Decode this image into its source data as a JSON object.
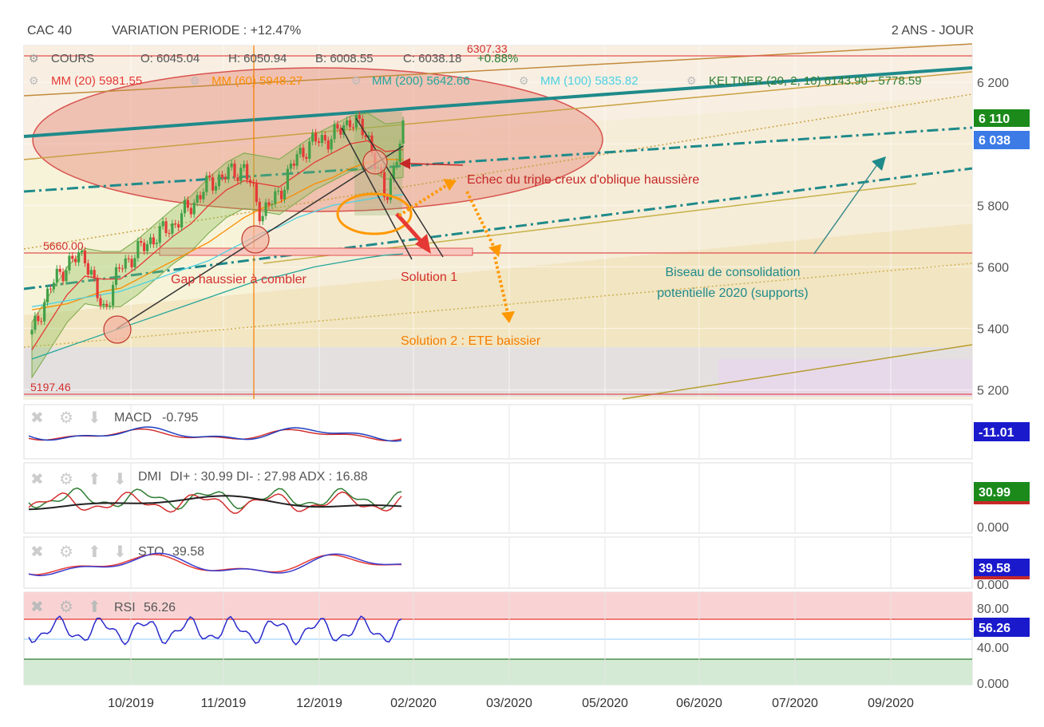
{
  "header": {
    "symbol": "CAC 40",
    "variation": "VARIATION PERIODE : +12.47%",
    "period": "2 ANS - JOUR"
  },
  "legend": {
    "cours_label": "COURS",
    "open": "O: 6045.04",
    "high": "H: 6050.94",
    "low": "B: 6008.55",
    "close": "C: 6038.18",
    "change": "+0.88%",
    "hidden_top_value": "6307.33",
    "mm20": "MM (20)  5981.55",
    "mm60": "MM (60)  5948.27",
    "mm200": "MM (200)  5642.66",
    "mm100": "MM (100)  5835.82",
    "keltner": "KELTNER (20, 2, 10)  6143.90 - 5778.59"
  },
  "colors": {
    "mm20": "#e53935",
    "mm60": "#fb8c00",
    "mm200": "#26a69a",
    "mm100": "#4dd0e1",
    "keltner": "#2e7d32",
    "candle_up": "#43a047",
    "candle_down": "#e53935",
    "trend_teal": "#1f8a8a",
    "annotation_red": "#d32f2f",
    "annotation_orange": "#ff9800",
    "tag_green": "#1b8a1b",
    "tag_blue": "#3c7be6",
    "tag_navy": "#1a1acc"
  },
  "annotations": {
    "echec": "Echec du triple creux d'oblique haussière",
    "gap": "Gap haussier à combler",
    "solution1": "Solution 1",
    "solution2": "Solution 2 : ETE baissier",
    "biseau_line1": "Biseau de consolidation",
    "biseau_line2": "potentielle 2020 (supports)",
    "level_5660": "5660.00",
    "level_5197": "5197.46"
  },
  "price_tags": {
    "upper": "6 110",
    "close": "6 038"
  },
  "indicators": {
    "macd": {
      "label": "MACD",
      "value": "-0.795",
      "tag": "-11.01"
    },
    "dmi": {
      "label": "DMI",
      "value": "DI+ : 30.99 DI- : 27.98 ADX : 16.88",
      "tag": "30.99",
      "axis": "0.000"
    },
    "sto": {
      "label": "STO",
      "value": "39.58",
      "tag": "39.58",
      "axis": "0.000"
    },
    "rsi": {
      "label": "RSI",
      "value": "56.26",
      "tag": "56.26",
      "axis": [
        "80.00",
        "40.00",
        "0.000"
      ]
    }
  },
  "chart_data": {
    "type": "line",
    "title": "CAC 40",
    "subtitle": "VARIATION PERIODE : +12.47%",
    "xlabel": "",
    "ylabel": "",
    "x_tick_labels": [
      "10/2019",
      "11/2019",
      "12/2019",
      "02/2020",
      "03/2020",
      "05/2020",
      "06/2020",
      "07/2020",
      "09/2020"
    ],
    "y_tick_labels": [
      "6 200",
      "6 000",
      "5 800",
      "5 600",
      "5 400",
      "5 200"
    ],
    "y_ticks": [
      6200,
      6000,
      5800,
      5600,
      5400,
      5200
    ],
    "ylim": [
      5170,
      6320
    ],
    "grid": true,
    "x_dates": [
      "2019-09-04",
      "2019-09-11",
      "2019-09-18",
      "2019-09-25",
      "2019-10-02",
      "2019-10-09",
      "2019-10-16",
      "2019-10-23",
      "2019-10-30",
      "2019-11-06",
      "2019-11-13",
      "2019-11-20",
      "2019-11-27",
      "2019-12-04",
      "2019-12-11",
      "2019-12-18",
      "2019-12-25",
      "2020-01-01",
      "2020-01-08",
      "2020-01-15",
      "2020-01-22",
      "2020-01-29"
    ],
    "series": [
      {
        "name": "COURS",
        "values": [
          5380,
          5530,
          5610,
          5640,
          5450,
          5600,
          5650,
          5700,
          5735,
          5800,
          5870,
          5900,
          5920,
          5770,
          5840,
          5960,
          6010,
          6020,
          6080,
          6030,
          5820,
          6038
        ]
      },
      {
        "name": "MM (20)",
        "values": [
          5330,
          5420,
          5510,
          5570,
          5560,
          5560,
          5600,
          5650,
          5700,
          5740,
          5800,
          5850,
          5880,
          5870,
          5860,
          5900,
          5940,
          5970,
          6000,
          6010,
          5975,
          5981
        ]
      },
      {
        "name": "MM (60)",
        "values": [
          5460,
          5470,
          5480,
          5500,
          5520,
          5530,
          5560,
          5590,
          5620,
          5650,
          5680,
          5720,
          5760,
          5790,
          5810,
          5840,
          5870,
          5890,
          5920,
          5940,
          5950,
          5948
        ]
      },
      {
        "name": "MM (200)",
        "values": [
          5300,
          5320,
          5340,
          5360,
          5380,
          5400,
          5420,
          5440,
          5460,
          5480,
          5500,
          5520,
          5540,
          5560,
          5570,
          5585,
          5600,
          5610,
          5620,
          5630,
          5638,
          5642
        ]
      },
      {
        "name": "MM (100)",
        "values": [
          5470,
          5480,
          5490,
          5500,
          5510,
          5520,
          5540,
          5560,
          5580,
          5600,
          5620,
          5650,
          5680,
          5710,
          5730,
          5760,
          5780,
          5800,
          5810,
          5820,
          5830,
          5835
        ]
      }
    ],
    "levels": [
      6307.33,
      5660.0,
      5197.46
    ]
  }
}
